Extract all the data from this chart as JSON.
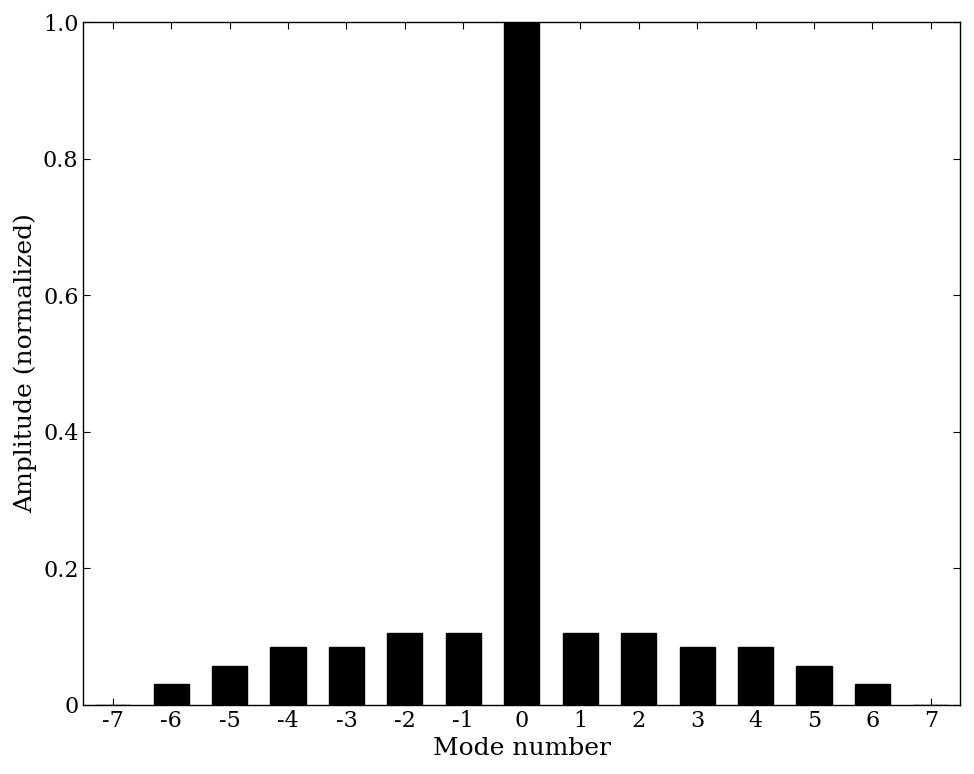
{
  "modes": [
    -7,
    -6,
    -5,
    -4,
    -3,
    -2,
    -1,
    0,
    1,
    2,
    3,
    4,
    5,
    6,
    7
  ],
  "amplitudes": [
    0.0,
    0.031,
    0.056,
    0.085,
    0.085,
    0.105,
    0.105,
    1.0,
    0.105,
    0.105,
    0.085,
    0.085,
    0.056,
    0.031,
    0.0
  ],
  "bar_color": "#000000",
  "xlabel": "Mode number",
  "ylabel": "Amplitude (normalized)",
  "xlim": [
    -7.5,
    7.5
  ],
  "ylim": [
    0,
    1.0
  ],
  "yticks": [
    0,
    0.2,
    0.4,
    0.6,
    0.8,
    1.0
  ],
  "xticks": [
    -7,
    -6,
    -5,
    -4,
    -3,
    -2,
    -1,
    0,
    1,
    2,
    3,
    4,
    5,
    6,
    7
  ],
  "bar_width": 0.6,
  "xlabel_fontsize": 18,
  "ylabel_fontsize": 18,
  "tick_fontsize": 16,
  "background_color": "#ffffff",
  "font_family": "serif"
}
